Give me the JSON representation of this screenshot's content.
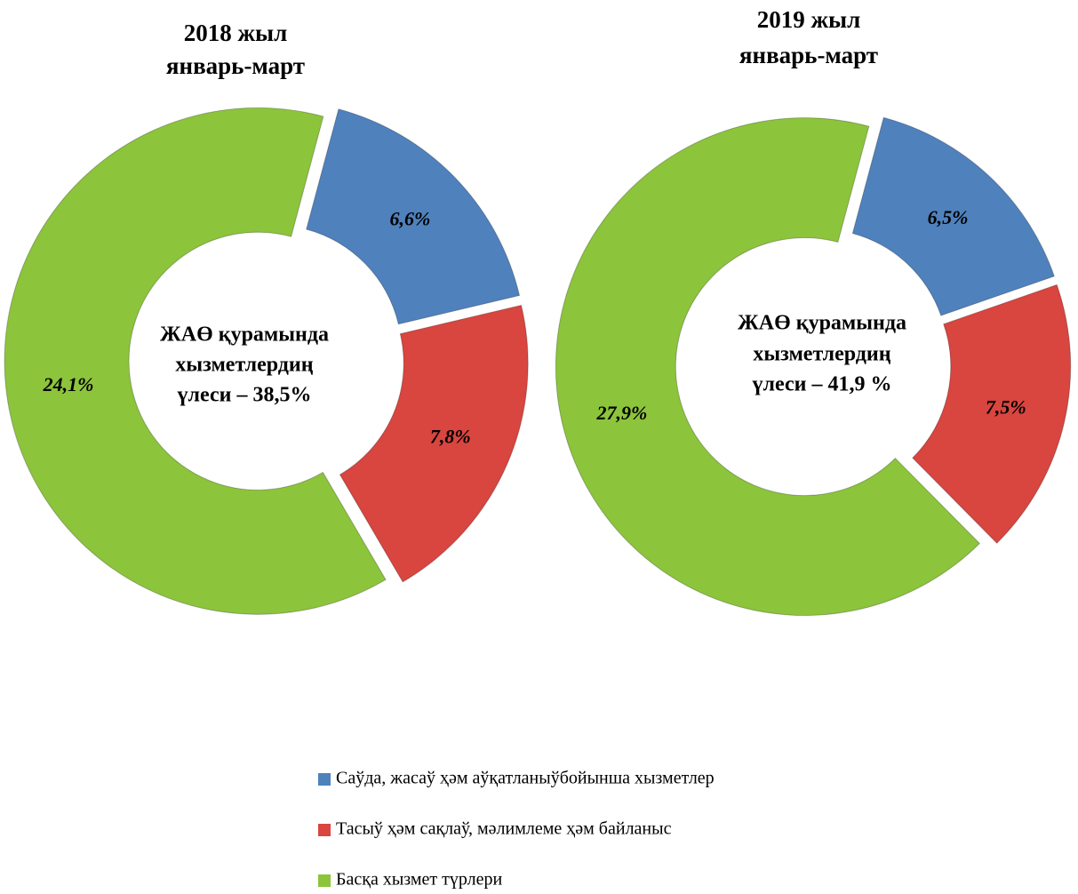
{
  "chart_data": [
    {
      "type": "donut",
      "title": [
        "2018 жыл",
        "январь-март"
      ],
      "center_text": [
        "ЖАӨ қурамында",
        "хызметлердиң",
        "үлеси – 38,5%"
      ],
      "categories": [
        "Саўда, жасаў ҳәм аўқатланыўбойынша хызметлер",
        "Тасыў ҳәм сақлаў, мәлимлеме ҳәм байланыс",
        "Басқа хызмет түрлери"
      ],
      "colors": [
        "#4f81bd",
        "#d9453f",
        "#8cc43c"
      ],
      "values": [
        6.6,
        7.8,
        24.1
      ],
      "value_labels": [
        "6,6%",
        "7,8%",
        "24,1%"
      ]
    },
    {
      "type": "donut",
      "title": [
        "2019 жыл",
        "январь-март"
      ],
      "center_text": [
        "ЖАӨ қурамында",
        "хызметлердиң",
        "үлеси – 41,9 %"
      ],
      "values": [
        6.5,
        7.5,
        27.9
      ],
      "value_labels": [
        "6,5%",
        "7,5%",
        "27,9%"
      ]
    }
  ]
}
